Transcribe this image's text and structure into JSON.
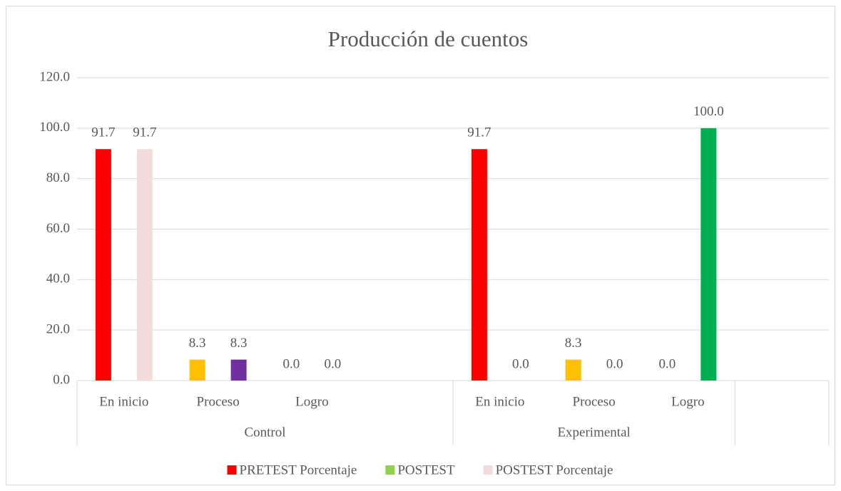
{
  "chart_data": {
    "type": "bar",
    "title": "Producción de cuentos",
    "groups": [
      {
        "name": "Control",
        "categories": [
          "En inicio",
          "Proceso",
          "Logro",
          null
        ]
      },
      {
        "name": "Experimental",
        "categories": [
          "En inicio",
          "Proceso",
          "Logro"
        ]
      },
      {
        "name": null,
        "categories": [
          null
        ]
      }
    ],
    "series": [
      {
        "name": "PRETEST Porcentaje",
        "color": "#ff0000",
        "point_colors": [
          "#ff0000",
          "#ffc000",
          "#ff0000",
          null,
          "#ff0000",
          "#ffc000",
          "#ff0000",
          null
        ],
        "values": [
          91.7,
          8.3,
          0.0,
          null,
          91.7,
          8.3,
          0.0,
          null
        ],
        "value_labels": [
          "91.7",
          "8.3",
          "0.0",
          null,
          "91.7",
          "8.3",
          "0.0",
          null
        ]
      },
      {
        "name": "POSTEST",
        "color": "#92d050",
        "values": [
          null,
          null,
          null,
          null,
          null,
          null,
          null,
          null
        ]
      },
      {
        "name": "POSTEST Porcentaje",
        "color": "#f2dcdb",
        "point_colors": [
          "#f2dcdb",
          "#7030a0",
          "#f2dcdb",
          null,
          "#f2dcdb",
          "#f2dcdb",
          "#00b050",
          null
        ],
        "values": [
          91.7,
          8.3,
          0.0,
          null,
          0.0,
          0.0,
          100.0,
          null
        ],
        "value_labels": [
          "91.7",
          "8.3",
          "0.0",
          null,
          "0.0",
          "0.0",
          "100.0",
          null
        ]
      }
    ],
    "ylim": [
      0,
      120
    ],
    "yticks": [
      {
        "value": 0,
        "label": "0.0"
      },
      {
        "value": 20,
        "label": "20.0"
      },
      {
        "value": 40,
        "label": "40.0"
      },
      {
        "value": 60,
        "label": "60.0"
      },
      {
        "value": 80,
        "label": "80.0"
      },
      {
        "value": 100,
        "label": "100.0"
      },
      {
        "value": 120,
        "label": "120.0"
      }
    ],
    "grid": true,
    "legend": "bottom"
  }
}
